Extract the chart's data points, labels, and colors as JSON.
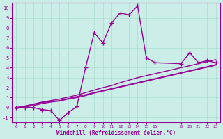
{
  "bg_color": "#cceee8",
  "grid_color": "#aaddcc",
  "line_color": "#990099",
  "xlabel": "Windchill (Refroidissement éolien,°C)",
  "xlim": [
    -0.5,
    23.5
  ],
  "ylim": [
    -1.5,
    10.5
  ],
  "yticks": [
    -1,
    0,
    1,
    2,
    3,
    4,
    5,
    6,
    7,
    8,
    9,
    10
  ],
  "xticks": [
    0,
    1,
    2,
    3,
    4,
    5,
    6,
    7,
    8,
    9,
    10,
    11,
    12,
    13,
    14,
    15,
    16,
    19,
    20,
    21,
    22,
    23
  ],
  "series1_x": [
    0,
    1,
    2,
    3,
    4,
    5,
    6,
    7,
    8,
    9,
    10,
    11,
    12,
    13,
    14,
    15,
    16,
    19,
    20,
    21,
    22,
    23
  ],
  "series1_y": [
    0.0,
    0.0,
    0.0,
    -0.2,
    -0.3,
    -1.3,
    -0.5,
    0.1,
    4.0,
    7.5,
    6.5,
    8.5,
    9.5,
    9.3,
    10.2,
    5.0,
    4.5,
    4.4,
    5.5,
    4.5,
    4.7,
    4.5
  ],
  "series2_x": [
    0,
    1,
    2,
    3,
    4,
    5,
    6,
    7,
    8,
    9,
    10,
    11,
    12,
    13,
    14,
    15,
    16,
    19,
    20,
    21,
    22,
    23
  ],
  "series2_y": [
    0.0,
    0.1,
    0.3,
    0.5,
    0.6,
    0.7,
    0.9,
    1.1,
    1.3,
    1.5,
    1.7,
    1.9,
    2.1,
    2.3,
    2.5,
    2.7,
    2.9,
    3.5,
    3.7,
    3.9,
    4.1,
    4.3
  ],
  "series3_x": [
    0,
    1,
    2,
    3,
    4,
    5,
    6,
    7,
    8,
    9,
    10,
    11,
    12,
    13,
    14,
    15,
    16,
    19,
    20,
    21,
    22,
    23
  ],
  "series3_y": [
    0.0,
    0.15,
    0.35,
    0.55,
    0.7,
    0.85,
    1.05,
    1.25,
    1.5,
    1.75,
    2.0,
    2.2,
    2.5,
    2.75,
    3.0,
    3.2,
    3.4,
    4.0,
    4.2,
    4.4,
    4.6,
    4.8
  ],
  "series4_x": [
    0,
    1,
    2,
    3,
    4,
    5,
    6,
    7,
    8,
    9,
    10,
    11,
    12,
    13,
    14,
    15,
    16,
    19,
    20,
    21,
    22,
    23
  ],
  "series4_y": [
    -0.1,
    0.05,
    0.2,
    0.4,
    0.55,
    0.65,
    0.85,
    1.0,
    1.2,
    1.45,
    1.65,
    1.85,
    2.05,
    2.25,
    2.45,
    2.65,
    2.85,
    3.45,
    3.65,
    3.85,
    4.05,
    4.25
  ],
  "markersize": 4,
  "linewidth": 1.0
}
